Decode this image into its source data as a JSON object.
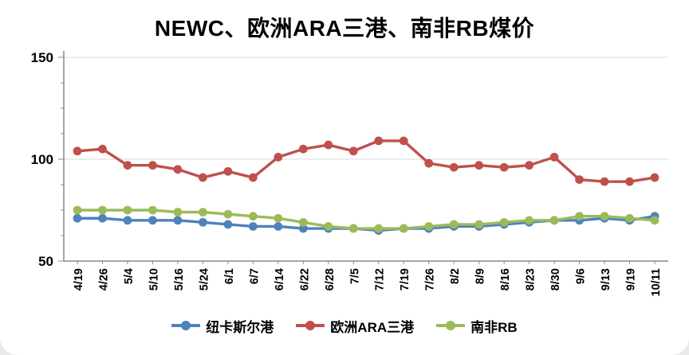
{
  "chart_data": {
    "type": "line",
    "title": "NEWC、欧洲ARA三港、南非RB煤价",
    "categories": [
      "4/19",
      "4/26",
      "5/4",
      "5/10",
      "5/16",
      "5/24",
      "6/1",
      "6/7",
      "6/14",
      "6/22",
      "6/28",
      "7/5",
      "7/12",
      "7/19",
      "7/26",
      "8/2",
      "8/9",
      "8/16",
      "8/23",
      "8/30",
      "9/6",
      "9/13",
      "9/19",
      "10/11"
    ],
    "series": [
      {
        "name": "纽卡斯尔港",
        "color": "#4f81bd",
        "values": [
          71,
          71,
          70,
          70,
          70,
          69,
          68,
          67,
          67,
          66,
          66,
          66,
          65,
          66,
          66,
          67,
          67,
          68,
          69,
          70,
          70,
          71,
          70,
          72
        ]
      },
      {
        "name": "欧洲ARA三港",
        "color": "#c0504d",
        "values": [
          104,
          105,
          97,
          97,
          95,
          91,
          94,
          91,
          101,
          105,
          107,
          104,
          109,
          109,
          98,
          96,
          97,
          96,
          97,
          101,
          90,
          89,
          89,
          91
        ]
      },
      {
        "name": "南非RB",
        "color": "#9bbb59",
        "values": [
          75,
          75,
          75,
          75,
          74,
          74,
          73,
          72,
          71,
          69,
          67,
          66,
          66,
          66,
          67,
          68,
          68,
          69,
          70,
          70,
          72,
          72,
          71,
          70
        ]
      }
    ],
    "ylim": [
      50,
      150
    ],
    "yticks": [
      50,
      100,
      150
    ],
    "grid": true,
    "legend_position": "bottom",
    "axis_color": "#898989",
    "grid_color": "#d9d9d9"
  }
}
